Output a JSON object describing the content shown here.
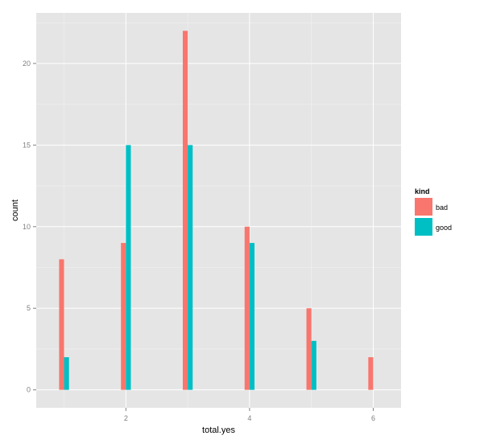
{
  "chart_data": {
    "type": "bar",
    "xlabel": "total.yes",
    "ylabel": "count",
    "xlim": [
      0.55,
      6.45
    ],
    "ylim": [
      -1.1,
      23.1
    ],
    "x_ticks": [
      2,
      4,
      6
    ],
    "y_ticks": [
      0,
      5,
      10,
      15,
      20
    ],
    "bar_width": 0.08,
    "grid": true,
    "legend": {
      "title": "kind",
      "placement": "right",
      "entries": [
        "bad",
        "good"
      ]
    },
    "series": [
      {
        "name": "bad",
        "color": "#F8766D",
        "x": [
          1,
          2,
          3,
          4,
          5,
          6
        ],
        "values": [
          8,
          9,
          22,
          10,
          5,
          2
        ]
      },
      {
        "name": "good",
        "color": "#00BFC4",
        "x": [
          1,
          2,
          3,
          4,
          5
        ],
        "values": [
          2,
          15,
          15,
          9,
          3
        ]
      }
    ]
  }
}
